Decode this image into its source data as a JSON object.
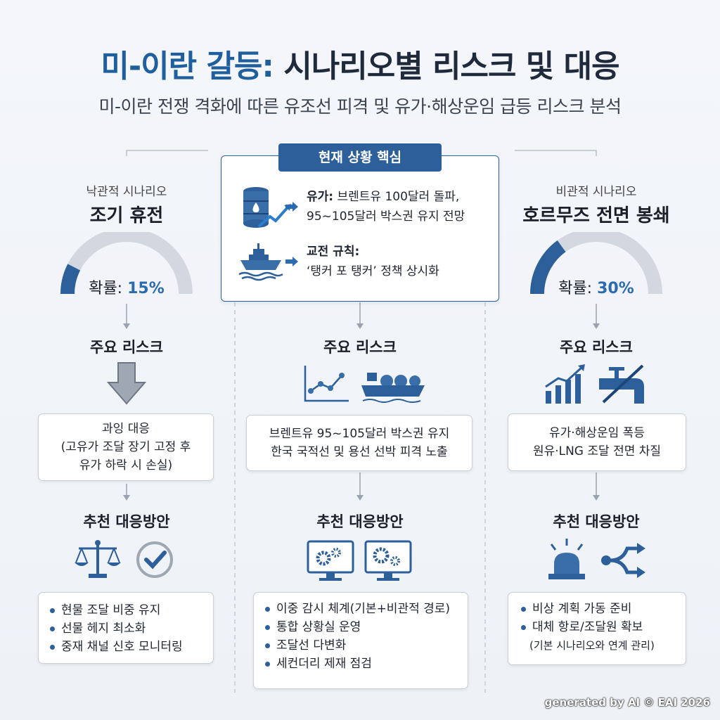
{
  "title": {
    "part1": "미-이란 갈등:",
    "part2": "시나리오별 리스크 및 대응"
  },
  "subtitle": "미-이란 전쟁 격화에 따른 유조선 피격 및 유가·해상운임 급등 리스크 분석",
  "current": {
    "tag": "현재 상황 핵심",
    "facts": [
      {
        "label": "유가:",
        "text1": "브렌트유 100달러 돌파,",
        "text2": "95~105달러 박스권 유지 전망",
        "icon": "oil-barrel-icon"
      },
      {
        "label": "교전 규칙:",
        "text1": "",
        "text2": "‘탱커 포 탱커’ 정책 상시화",
        "icon": "tanker-ship-icon"
      }
    ]
  },
  "scenarios": [
    {
      "key": "optimistic",
      "kind": "낙관적 시나리오",
      "name": "조기 휴전",
      "prob_label": "확률:",
      "prob_value": "15%",
      "probability": 0.15,
      "risk_heading": "주요 리스크",
      "risk_lines": [
        "과잉 대응",
        "(고유가 조달 장기 고정 후",
        "유가 하락 시 손실)"
      ],
      "response_heading": "추천 대응방안",
      "responses": [
        "현물 조달 비중 유지",
        "선물 헤지 최소화",
        "중재 채널 신호 모니터링"
      ]
    },
    {
      "key": "base",
      "risk_heading": "주요 리스크",
      "risk_lines": [
        "브렌트유 95~105달러 박스권 유지",
        "한국 국적선 및 용선 선박 피격 노출"
      ],
      "response_heading": "추천 대응방안",
      "responses": [
        "이중 감시 체계(기본+비관적 경로)",
        "통합 상황실 운영",
        "조달선 다변화",
        "세컨더리 제재 점검"
      ]
    },
    {
      "key": "pessimistic",
      "kind": "비관적 시나리오",
      "name": "호르무즈 전면 봉쇄",
      "prob_label": "확률:",
      "prob_value": "30%",
      "probability": 0.3,
      "risk_heading": "주요 리스크",
      "risk_lines": [
        "유가·해상운임 폭등",
        "원유·LNG 조달 전면 차질"
      ],
      "response_heading": "추천 대응방안",
      "responses": [
        "비상 계획 가동 준비",
        "대체 항로/조달원 확보"
      ],
      "response_note": "(기본 시나리오와 연계 관리)"
    }
  ],
  "colors": {
    "primary": "#2d5f9a",
    "accent": "#2b6cb0",
    "gauge_bg": "#d3d8e0"
  },
  "footer": "generated by AI © EAI 2026"
}
